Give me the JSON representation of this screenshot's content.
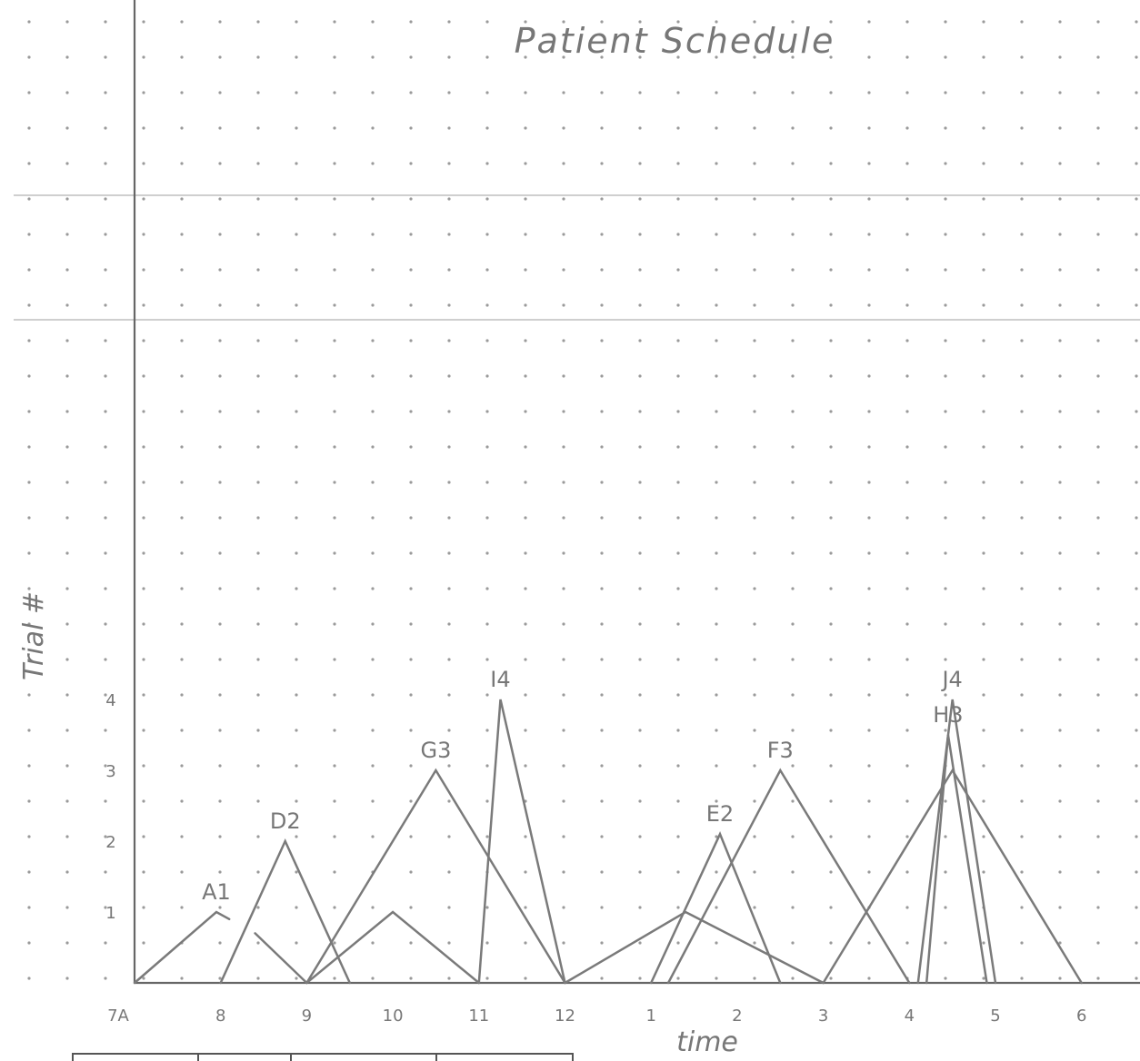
{
  "chart_data": {
    "type": "line",
    "title": "Patient Schedule",
    "xlabel": "time",
    "ylabel": "Trial #",
    "x_ticks": [
      "7A",
      "8",
      "9",
      "10",
      "11",
      "12",
      "1",
      "2",
      "3",
      "4",
      "5",
      "6"
    ],
    "y_ticks": [
      "1",
      "2",
      "3",
      "4"
    ],
    "ylim": [
      0,
      4
    ],
    "grid": "dot grid paper",
    "x_unit": "hours from 7A",
    "series": [
      {
        "name": "A1",
        "values": [
          [
            0,
            0
          ],
          [
            0.95,
            1
          ],
          [
            1.1,
            0.9
          ]
        ]
      },
      {
        "name": "D2",
        "values": [
          [
            1.0,
            0
          ],
          [
            1.75,
            2
          ],
          [
            2.5,
            0
          ]
        ]
      },
      {
        "values": [
          [
            1.4,
            0.7
          ],
          [
            2.0,
            0
          ],
          [
            3.0,
            1
          ],
          [
            4.0,
            0
          ]
        ]
      },
      {
        "name": "G3",
        "values": [
          [
            2.0,
            0
          ],
          [
            3.5,
            3
          ],
          [
            5.0,
            0
          ]
        ]
      },
      {
        "name": "I4",
        "values": [
          [
            4.0,
            0
          ],
          [
            4.25,
            4
          ],
          [
            5.0,
            0
          ]
        ]
      },
      {
        "values": [
          [
            5.0,
            0
          ],
          [
            6.4,
            1
          ],
          [
            8.0,
            0
          ]
        ]
      },
      {
        "name": "E2",
        "values": [
          [
            6.0,
            0
          ],
          [
            6.8,
            2.1
          ],
          [
            7.5,
            0
          ]
        ]
      },
      {
        "name": "F3",
        "values": [
          [
            6.2,
            0
          ],
          [
            7.5,
            3
          ],
          [
            9.0,
            0
          ]
        ]
      },
      {
        "values": [
          [
            8.0,
            0
          ],
          [
            9.5,
            3
          ],
          [
            11.0,
            0
          ]
        ]
      },
      {
        "name": "J4",
        "values": [
          [
            9.1,
            0
          ],
          [
            9.5,
            4
          ],
          [
            10.0,
            0
          ]
        ]
      },
      {
        "name": "H3",
        "values": [
          [
            9.2,
            0
          ],
          [
            9.45,
            3.5
          ],
          [
            9.9,
            0
          ]
        ]
      }
    ]
  }
}
